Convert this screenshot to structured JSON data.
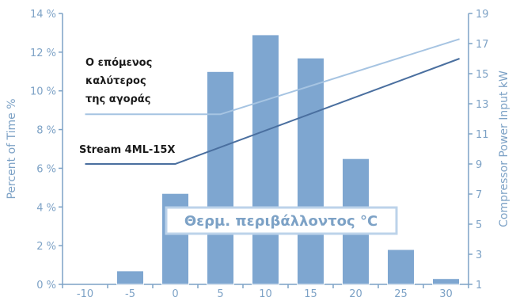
{
  "chart_data": {
    "type": "bar",
    "x_categories": [
      "-10",
      "-5",
      "0",
      "5",
      "10",
      "15",
      "20",
      "25",
      "30"
    ],
    "series": [
      {
        "type": "bar",
        "axis": "left",
        "values": [
          0.0,
          0.7,
          4.7,
          11.0,
          12.9,
          11.7,
          6.5,
          1.8,
          0.3
        ],
        "color": "#7ea6d0"
      },
      {
        "type": "line",
        "axis": "right",
        "name": "Ο επόμενος καλύτερος της αγοράς",
        "points": [
          [
            -10,
            12.3
          ],
          [
            5,
            12.3
          ],
          [
            31.5,
            17.3
          ]
        ],
        "color": "#a6c4e2"
      },
      {
        "type": "line",
        "axis": "right",
        "name": "Stream 4ML-15X",
        "points": [
          [
            -10,
            9.0
          ],
          [
            0,
            9.0
          ],
          [
            31.5,
            16.0
          ]
        ],
        "color": "#4a6f9f"
      }
    ],
    "ylabel_left": "Percent of Time %",
    "ylabel_right": "Compressor Power Input kW",
    "center_label": "Θερμ. περιβάλλοντος °C",
    "yleft": {
      "lim": [
        0,
        14
      ],
      "ticks": [
        "0 %",
        "2 %",
        "4 %",
        "6 %",
        "8 %",
        "10 %",
        "12 %",
        "14 %"
      ]
    },
    "yright": {
      "lim": [
        1,
        19
      ],
      "ticks": [
        "1",
        "3",
        "5",
        "7",
        "9",
        "11",
        "13",
        "15",
        "17",
        "19"
      ]
    },
    "annotations": {
      "competitor_lines": [
        "Ο επόμενος",
        "καλύτερος",
        "της αγοράς"
      ],
      "stream": "Stream 4ML-15X"
    },
    "grid": false
  }
}
